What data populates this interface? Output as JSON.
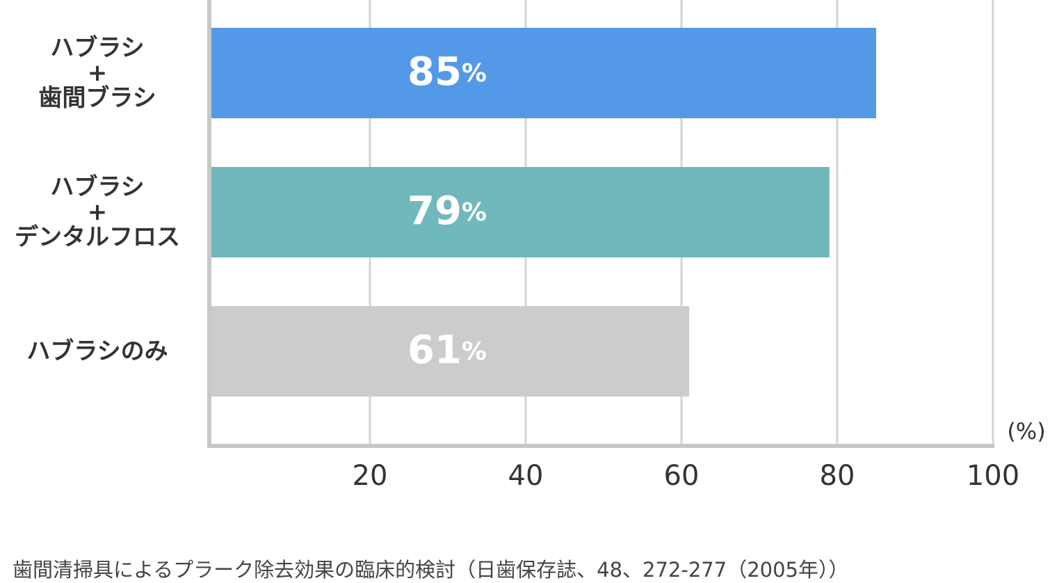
{
  "chart_data": {
    "type": "barh",
    "categories": [
      "ハブラシ\n+\n歯間ブラシ",
      "ハブラシ\n+\nデンタルフロス",
      "ハブラシのみ"
    ],
    "values": [
      85,
      79,
      61
    ],
    "value_labels": [
      "85%",
      "79%",
      "61%"
    ],
    "colors": [
      "#5499e8",
      "#70b8bb",
      "#cccccc"
    ],
    "xlim": [
      0,
      100
    ],
    "xticks": [
      20,
      40,
      60,
      80,
      100
    ],
    "x_axis_label": "(%)",
    "grid": true,
    "source": "歯間清掃具によるプラーク除去効果の臨床的検討（日歯保存誌、48、272-277（2005年））"
  }
}
